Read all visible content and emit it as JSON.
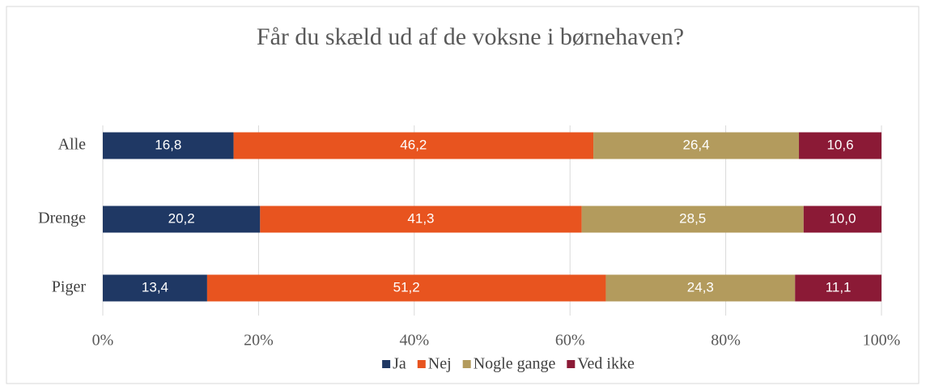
{
  "chart_data": {
    "type": "stacked_bar_horizontal",
    "title": "Får du skæld ud af de voksne i børnehaven?",
    "categories": [
      "Alle",
      "Drenge",
      "Piger"
    ],
    "series": [
      {
        "name": "Ja",
        "color": "#1f3864",
        "values": [
          16.8,
          20.2,
          13.4
        ],
        "value_labels": [
          "16,8",
          "20,2",
          "13,4"
        ]
      },
      {
        "name": "Nej",
        "color": "#e8541f",
        "values": [
          46.2,
          41.3,
          51.2
        ],
        "value_labels": [
          "46,2",
          "41,3",
          "51,2"
        ]
      },
      {
        "name": "Nogle gange",
        "color": "#b39b5d",
        "values": [
          26.4,
          28.5,
          24.3
        ],
        "value_labels": [
          "26,4",
          "28,5",
          "24,3"
        ]
      },
      {
        "name": "Ved ikke",
        "color": "#8b1a36",
        "values": [
          10.6,
          10.0,
          11.1
        ],
        "value_labels": [
          "10,6",
          "10,0",
          "11,1"
        ]
      }
    ],
    "xlim": [
      0,
      100
    ],
    "xticks": [
      {
        "value": 0,
        "label": "0%"
      },
      {
        "value": 20,
        "label": "20%"
      },
      {
        "value": 40,
        "label": "40%"
      },
      {
        "value": 60,
        "label": "60%"
      },
      {
        "value": 80,
        "label": "80%"
      },
      {
        "value": 100,
        "label": "100%"
      }
    ],
    "grid": true,
    "legend": "bottom"
  }
}
